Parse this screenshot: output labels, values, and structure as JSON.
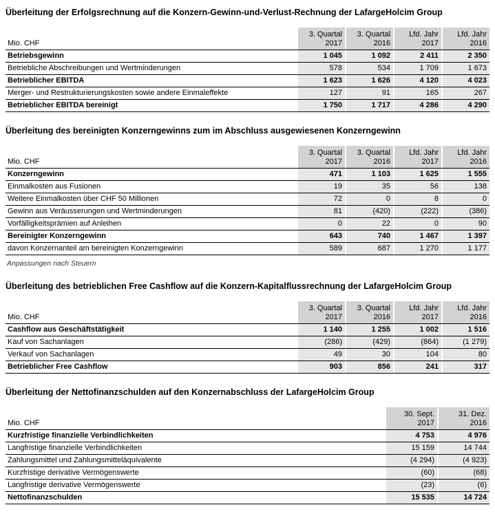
{
  "sections": [
    {
      "title": "Überleitung der Erfolgsrechnung auf die Konzern-Gewinn-und-Verlust-Rechnung der LafargeHolcim Group",
      "unit": "Mio. CHF",
      "columns": [
        [
          "3. Quartal",
          "2017"
        ],
        [
          "3. Quartal",
          "2016"
        ],
        [
          "Lfd. Jahr",
          "2017"
        ],
        [
          "Lfd. Jahr",
          "2016"
        ]
      ],
      "rows": [
        {
          "label": "Betriebsgewinn",
          "bold": true,
          "values": [
            "1 045",
            "1 092",
            "2 411",
            "2 350"
          ]
        },
        {
          "label": "Betriebliche Abschreibungen und Wertminderungen",
          "bold": false,
          "values": [
            "578",
            "534",
            "1 709",
            "1 673"
          ]
        },
        {
          "label": "Betrieblicher EBITDA",
          "bold": true,
          "values": [
            "1 623",
            "1 626",
            "4 120",
            "4 023"
          ]
        },
        {
          "label": "Merger- und Restrukturierungskosten sowie andere Einmaleffekte",
          "bold": false,
          "values": [
            "127",
            "91",
            "165",
            "267"
          ]
        },
        {
          "label": "Betrieblicher EBITDA bereinigt",
          "bold": true,
          "values": [
            "1 750",
            "1 717",
            "4 286",
            "4 290"
          ]
        }
      ],
      "footnote": ""
    },
    {
      "title": "Überleitung des bereinigten Konzerngewinns zum im Abschluss ausgewiesenen Konzerngewinn",
      "unit": "Mio. CHF",
      "columns": [
        [
          "3. Quartal",
          "2017"
        ],
        [
          "3. Quartal",
          "2016"
        ],
        [
          "Lfd. Jahr",
          "2017"
        ],
        [
          "Lfd. Jahr",
          "2016"
        ]
      ],
      "rows": [
        {
          "label": "Konzerngewinn",
          "bold": true,
          "values": [
            "471",
            "1 103",
            "1 625",
            "1 555"
          ]
        },
        {
          "label": "Einmalkosten aus Fusionen",
          "bold": false,
          "values": [
            "19",
            "35",
            "56",
            "138"
          ]
        },
        {
          "label": "Weitere Einmalkosten über CHF 50 Millionen",
          "bold": false,
          "values": [
            "72",
            "0",
            "8",
            "0"
          ]
        },
        {
          "label": "Gewinn aus Veräusserungen und Wertminderungen",
          "bold": false,
          "values": [
            "81",
            "(420)",
            "(222)",
            "(386)"
          ]
        },
        {
          "label": "Vorfälligkeitsprämien auf Anleihen",
          "bold": false,
          "values": [
            "0",
            "22",
            "0",
            "90"
          ]
        },
        {
          "label": "Bereinigter Konzerngewinn",
          "bold": true,
          "values": [
            "643",
            "740",
            "1 467",
            "1 397"
          ]
        },
        {
          "label": "davon Konzernanteil am bereinigten Konzerngewinn",
          "bold": false,
          "values": [
            "589",
            "687",
            "1 270",
            "1 177"
          ]
        }
      ],
      "footnote": "Anpassungen nach Steuern"
    },
    {
      "title": "Überleitung des betrieblichen Free Cashflow auf die Konzern-Kapitalflussrechnung der LafargeHolcim Group",
      "unit": "Mio. CHF",
      "columns": [
        [
          "3. Quartal",
          "2017"
        ],
        [
          "3. Quartal",
          "2016"
        ],
        [
          "Lfd. Jahr",
          "2017"
        ],
        [
          "Lfd. Jahr",
          "2016"
        ]
      ],
      "rows": [
        {
          "label": "Cashflow aus Geschäftstätigkeit",
          "bold": true,
          "values": [
            "1 140",
            "1 255",
            "1 002",
            "1 516"
          ]
        },
        {
          "label": "Kauf von Sachanlagen",
          "bold": false,
          "values": [
            "(286)",
            "(429)",
            "(864)",
            "(1 279)"
          ]
        },
        {
          "label": "Verkauf von Sachanlagen",
          "bold": false,
          "values": [
            "49",
            "30",
            "104",
            "80"
          ]
        },
        {
          "label": "Betrieblicher Free Cashflow",
          "bold": true,
          "values": [
            "903",
            "856",
            "241",
            "317"
          ]
        }
      ],
      "footnote": ""
    },
    {
      "title": "Überleitung der Nettofinanzschulden auf den Konzernabschluss der LafargeHolcim Group",
      "unit": "Mio. CHF",
      "columns": [
        [
          "30. Sept.",
          "2017"
        ],
        [
          "31. Dez.",
          "2016"
        ]
      ],
      "rows": [
        {
          "label": "Kurzfristige finanzielle Verbindlichkeiten",
          "bold": true,
          "values": [
            "4 753",
            "4 976"
          ]
        },
        {
          "label": "Langfristige finanzielle Verbindlichkeiten",
          "bold": false,
          "values": [
            "15 159",
            "14 744"
          ]
        },
        {
          "label": "Zahlungsmittel und Zahlungsmitteläquivalente",
          "bold": false,
          "values": [
            "(4 294)",
            "(4 923)"
          ]
        },
        {
          "label": "Kurzfristige derivative Vermögenswerte",
          "bold": false,
          "values": [
            "(60)",
            "(68)"
          ]
        },
        {
          "label": "Langfristige derivative Vermögenswerte",
          "bold": false,
          "values": [
            "(23)",
            "(6)"
          ]
        },
        {
          "label": "Nettofinanzschulden",
          "bold": true,
          "values": [
            "15 535",
            "14 724"
          ]
        }
      ],
      "footnote": ""
    }
  ]
}
